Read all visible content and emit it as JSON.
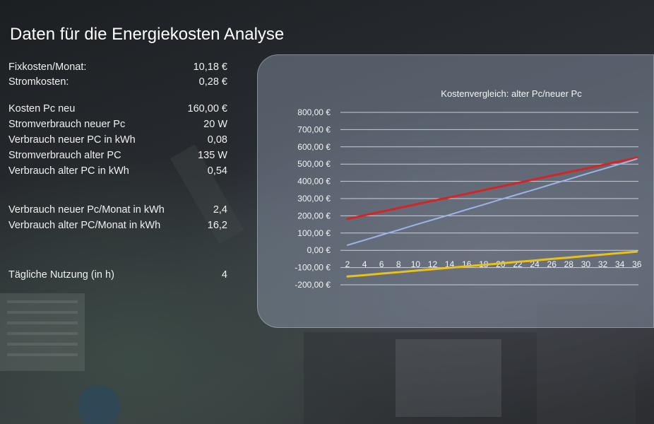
{
  "title": "Daten für die Energiekosten Analyse",
  "params": [
    {
      "label": "Fixkosten/Monat:",
      "value": "10,18 €"
    },
    {
      "label": "Stromkosten:",
      "value": "0,28 €"
    },
    {
      "label": "Kosten Pc neu",
      "value": "160,00 €"
    },
    {
      "label": "Stromverbrauch neuer Pc",
      "value": "20 W"
    },
    {
      "label": "Verbrauch neuer PC in kWh",
      "value": "0,08"
    },
    {
      "label": "Stromverbrauch alter PC",
      "value": "135 W"
    },
    {
      "label": "Verbrauch alter PC in kWh",
      "value": "0,54"
    },
    {
      "label": "Verbrauch neuer Pc/Monat in kWh",
      "value": "2,4"
    },
    {
      "label": "Verbrauch alter PC/Monat in kWh",
      "value": "16,2"
    },
    {
      "label": "Tägliche Nutzung (in h)",
      "value": "4"
    }
  ],
  "colors": {
    "red_series": "#d42424",
    "blue_series": "#9db4e8",
    "yellow_series": "#e8c21a"
  },
  "chart_data": {
    "type": "line",
    "title": "Kostenvergleich: alter Pc/neuer Pc",
    "x": [
      2,
      4,
      6,
      8,
      10,
      12,
      14,
      16,
      18,
      20,
      22,
      24,
      26,
      28,
      30,
      32,
      34,
      36
    ],
    "series": [
      {
        "values": [
          182,
          203,
          224,
          245,
          266,
          287,
          307,
          328,
          349,
          370,
          391,
          412,
          433,
          454,
          474,
          495,
          516,
          537
        ],
        "color": "red"
      },
      {
        "values": [
          30,
          59,
          89,
          118,
          148,
          177,
          206,
          236,
          265,
          295,
          324,
          353,
          383,
          412,
          442,
          471,
          500,
          530
        ],
        "color": "blue"
      },
      {
        "values": [
          -152,
          -144,
          -135,
          -127,
          -118,
          -110,
          -101,
          -93,
          -84,
          -76,
          -67,
          -59,
          -50,
          -42,
          -33,
          -25,
          -16,
          -8
        ],
        "color": "yellow"
      }
    ],
    "y_ticks": [
      "800,00 €",
      "700,00 €",
      "600,00 €",
      "500,00 €",
      "400,00 €",
      "300,00 €",
      "200,00 €",
      "100,00 €",
      "0,00 €",
      "-100,00 €",
      "-200,00 €"
    ],
    "ylim": [
      -200,
      800
    ],
    "grid": true
  }
}
